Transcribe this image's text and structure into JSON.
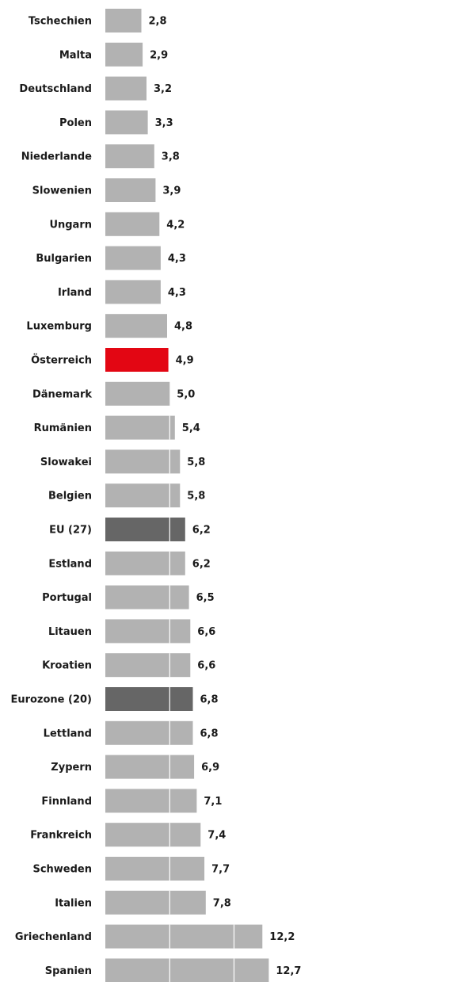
{
  "chart_data": {
    "type": "bar",
    "orientation": "horizontal",
    "title": "",
    "xlabel": "",
    "ylabel": "",
    "xlim": [
      0,
      14
    ],
    "gridlines_at": [
      5,
      10
    ],
    "grid": true,
    "legend": "none",
    "colors": {
      "default": "#b2b2b2",
      "aggregate": "#666666",
      "highlight": "#e30613",
      "gridline": "#ffffff"
    },
    "categories": [
      "Tschechien",
      "Malta",
      "Deutschland",
      "Polen",
      "Niederlande",
      "Slowenien",
      "Ungarn",
      "Bulgarien",
      "Irland",
      "Luxemburg",
      "Österreich",
      "Dänemark",
      "Rumänien",
      "Slowakei",
      "Belgien",
      "EU (27)",
      "Estland",
      "Portugal",
      "Litauen",
      "Kroatien",
      "Eurozone (20)",
      "Lettland",
      "Zypern",
      "Finnland",
      "Frankreich",
      "Schweden",
      "Italien",
      "Griechenland",
      "Spanien"
    ],
    "values": [
      2.8,
      2.9,
      3.2,
      3.3,
      3.8,
      3.9,
      4.2,
      4.3,
      4.3,
      4.8,
      4.9,
      5.0,
      5.4,
      5.8,
      5.8,
      6.2,
      6.2,
      6.5,
      6.6,
      6.6,
      6.8,
      6.8,
      6.9,
      7.1,
      7.4,
      7.7,
      7.8,
      12.2,
      12.7
    ],
    "value_labels": [
      "2,8",
      "2,9",
      "3,2",
      "3,3",
      "3,8",
      "3,9",
      "4,2",
      "4,3",
      "4,3",
      "4,8",
      "4,9",
      "5,0",
      "5,4",
      "5,8",
      "5,8",
      "6,2",
      "6,2",
      "6,5",
      "6,6",
      "6,6",
      "6,8",
      "6,8",
      "6,9",
      "7,1",
      "7,4",
      "7,7",
      "7,8",
      "12,2",
      "12,7"
    ],
    "bar_style": [
      "default",
      "default",
      "default",
      "default",
      "default",
      "default",
      "default",
      "default",
      "default",
      "default",
      "highlight",
      "default",
      "default",
      "default",
      "default",
      "aggregate",
      "default",
      "default",
      "default",
      "default",
      "aggregate",
      "default",
      "default",
      "default",
      "default",
      "default",
      "default",
      "default",
      "default"
    ]
  }
}
